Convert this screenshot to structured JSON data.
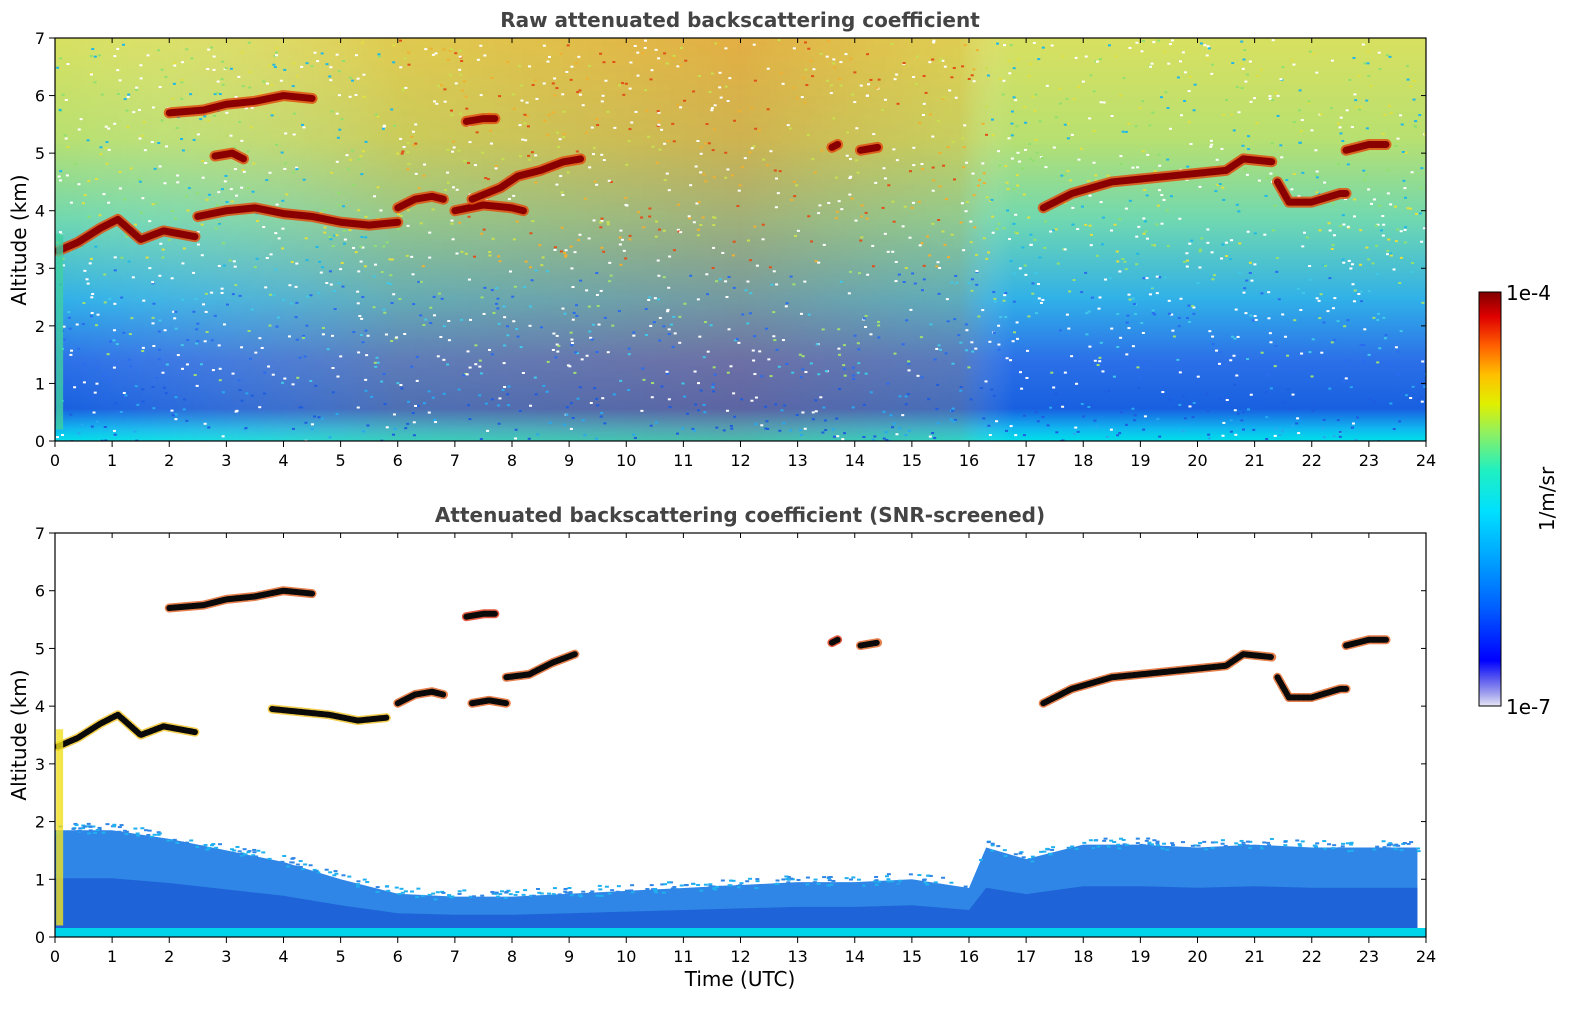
{
  "chart_data": [
    {
      "type": "heatmap",
      "title": "Raw attenuated backscattering coefficient",
      "xlabel": "",
      "ylabel": "Altitude (km)",
      "xlim": [
        0,
        24
      ],
      "ylim": [
        0,
        7
      ],
      "xticks": [
        0,
        1,
        2,
        3,
        4,
        5,
        6,
        7,
        8,
        9,
        10,
        11,
        12,
        13,
        14,
        15,
        16,
        17,
        18,
        19,
        20,
        21,
        22,
        23,
        24
      ],
      "yticks": [
        0,
        1,
        2,
        3,
        4,
        5,
        6,
        7
      ],
      "colormap": "jet",
      "background": "noisy",
      "cloud_layers": [
        {
          "x": [
            0.05,
            0.4,
            0.8,
            1.1,
            1.5,
            1.9,
            2.45
          ],
          "y": [
            3.3,
            3.45,
            3.7,
            3.85,
            3.5,
            3.65,
            3.55
          ]
        },
        {
          "x": [
            2.0,
            2.6,
            3.0,
            3.5,
            4.0,
            4.5
          ],
          "y": [
            5.7,
            5.75,
            5.85,
            5.9,
            6.0,
            5.95
          ]
        },
        {
          "x": [
            2.5,
            3.0,
            3.5,
            4.0,
            4.5,
            5.0,
            5.5,
            6.0
          ],
          "y": [
            3.9,
            4.0,
            4.05,
            3.95,
            3.9,
            3.8,
            3.75,
            3.8
          ]
        },
        {
          "x": [
            6.0,
            6.3,
            6.6,
            6.8
          ],
          "y": [
            4.05,
            4.2,
            4.25,
            4.2
          ]
        },
        {
          "x": [
            7.0,
            7.5,
            8.0,
            8.2
          ],
          "y": [
            4.0,
            4.1,
            4.05,
            4.0
          ]
        },
        {
          "x": [
            7.3,
            7.8,
            8.1,
            8.5,
            8.9,
            9.2
          ],
          "y": [
            4.2,
            4.4,
            4.6,
            4.7,
            4.85,
            4.9
          ]
        },
        {
          "x": [
            7.2,
            7.5,
            7.7
          ],
          "y": [
            5.55,
            5.6,
            5.6
          ]
        },
        {
          "x": [
            2.8,
            3.1,
            3.3
          ],
          "y": [
            4.95,
            5.0,
            4.9
          ]
        },
        {
          "x": [
            13.6,
            13.7
          ],
          "y": [
            5.1,
            5.15
          ]
        },
        {
          "x": [
            14.1,
            14.4
          ],
          "y": [
            5.05,
            5.1
          ]
        },
        {
          "x": [
            17.3,
            17.8,
            18.5,
            19.5,
            20.5,
            20.8,
            21.3
          ],
          "y": [
            4.05,
            4.3,
            4.5,
            4.6,
            4.7,
            4.9,
            4.85
          ]
        },
        {
          "x": [
            21.4,
            21.6,
            22.0,
            22.5,
            22.6
          ],
          "y": [
            4.5,
            4.15,
            4.15,
            4.3,
            4.3
          ]
        },
        {
          "x": [
            22.6,
            23.0,
            23.3
          ],
          "y": [
            5.05,
            5.15,
            5.15
          ]
        }
      ]
    },
    {
      "type": "heatmap",
      "title": "Attenuated backscattering coefficient (SNR-screened)",
      "xlabel": "Time (UTC)",
      "ylabel": "Altitude (km)",
      "xlim": [
        0,
        24
      ],
      "ylim": [
        0,
        7
      ],
      "xticks": [
        0,
        1,
        2,
        3,
        4,
        5,
        6,
        7,
        8,
        9,
        10,
        11,
        12,
        13,
        14,
        15,
        16,
        17,
        18,
        19,
        20,
        21,
        22,
        23,
        24
      ],
      "yticks": [
        0,
        1,
        2,
        3,
        4,
        5,
        6,
        7
      ],
      "colormap": "jet",
      "background": "screened",
      "boundary_layer_top": {
        "x": [
          0,
          1,
          2,
          3,
          4,
          5,
          6,
          7,
          8,
          9,
          10,
          11,
          12,
          13,
          14,
          15,
          16,
          16.3,
          17,
          18,
          19,
          20,
          21,
          22,
          23,
          23.85
        ],
        "y": [
          1.85,
          1.85,
          1.7,
          1.5,
          1.3,
          1.0,
          0.75,
          0.7,
          0.7,
          0.75,
          0.8,
          0.85,
          0.9,
          0.95,
          0.95,
          1.0,
          0.85,
          1.55,
          1.35,
          1.6,
          1.6,
          1.55,
          1.6,
          1.55,
          1.55,
          1.55
        ]
      },
      "cloud_layers": [
        {
          "x": [
            0.05,
            0.4,
            0.8,
            1.1,
            1.5,
            1.9,
            2.45
          ],
          "y": [
            3.3,
            3.45,
            3.7,
            3.85,
            3.5,
            3.65,
            3.55
          ]
        },
        {
          "x": [
            2.0,
            2.6,
            3.0,
            3.5,
            4.0,
            4.5
          ],
          "y": [
            5.7,
            5.75,
            5.85,
            5.9,
            6.0,
            5.95
          ]
        },
        {
          "x": [
            3.8,
            4.3,
            4.8,
            5.3,
            5.8
          ],
          "y": [
            3.95,
            3.9,
            3.85,
            3.75,
            3.8
          ]
        },
        {
          "x": [
            6.0,
            6.3,
            6.6,
            6.8
          ],
          "y": [
            4.05,
            4.2,
            4.25,
            4.2
          ]
        },
        {
          "x": [
            7.3,
            7.6,
            7.9
          ],
          "y": [
            4.05,
            4.1,
            4.05
          ]
        },
        {
          "x": [
            7.9,
            8.3,
            8.7,
            9.1
          ],
          "y": [
            4.5,
            4.55,
            4.75,
            4.9
          ]
        },
        {
          "x": [
            7.2,
            7.5,
            7.7
          ],
          "y": [
            5.55,
            5.6,
            5.6
          ]
        },
        {
          "x": [
            13.6,
            13.7
          ],
          "y": [
            5.1,
            5.15
          ]
        },
        {
          "x": [
            14.1,
            14.4
          ],
          "y": [
            5.05,
            5.1
          ]
        },
        {
          "x": [
            17.3,
            17.8,
            18.5,
            19.5,
            20.5,
            20.8,
            21.3
          ],
          "y": [
            4.05,
            4.3,
            4.5,
            4.6,
            4.7,
            4.9,
            4.85
          ]
        },
        {
          "x": [
            21.4,
            21.6,
            22.0,
            22.5,
            22.6
          ],
          "y": [
            4.5,
            4.15,
            4.15,
            4.3,
            4.3
          ]
        },
        {
          "x": [
            22.6,
            23.0,
            23.3
          ],
          "y": [
            5.05,
            5.15,
            5.15
          ]
        }
      ]
    }
  ],
  "colorbar": {
    "label": "1/m/sr",
    "min_label": "1e-7",
    "max_label": "1e-4",
    "colormap": "jet"
  }
}
